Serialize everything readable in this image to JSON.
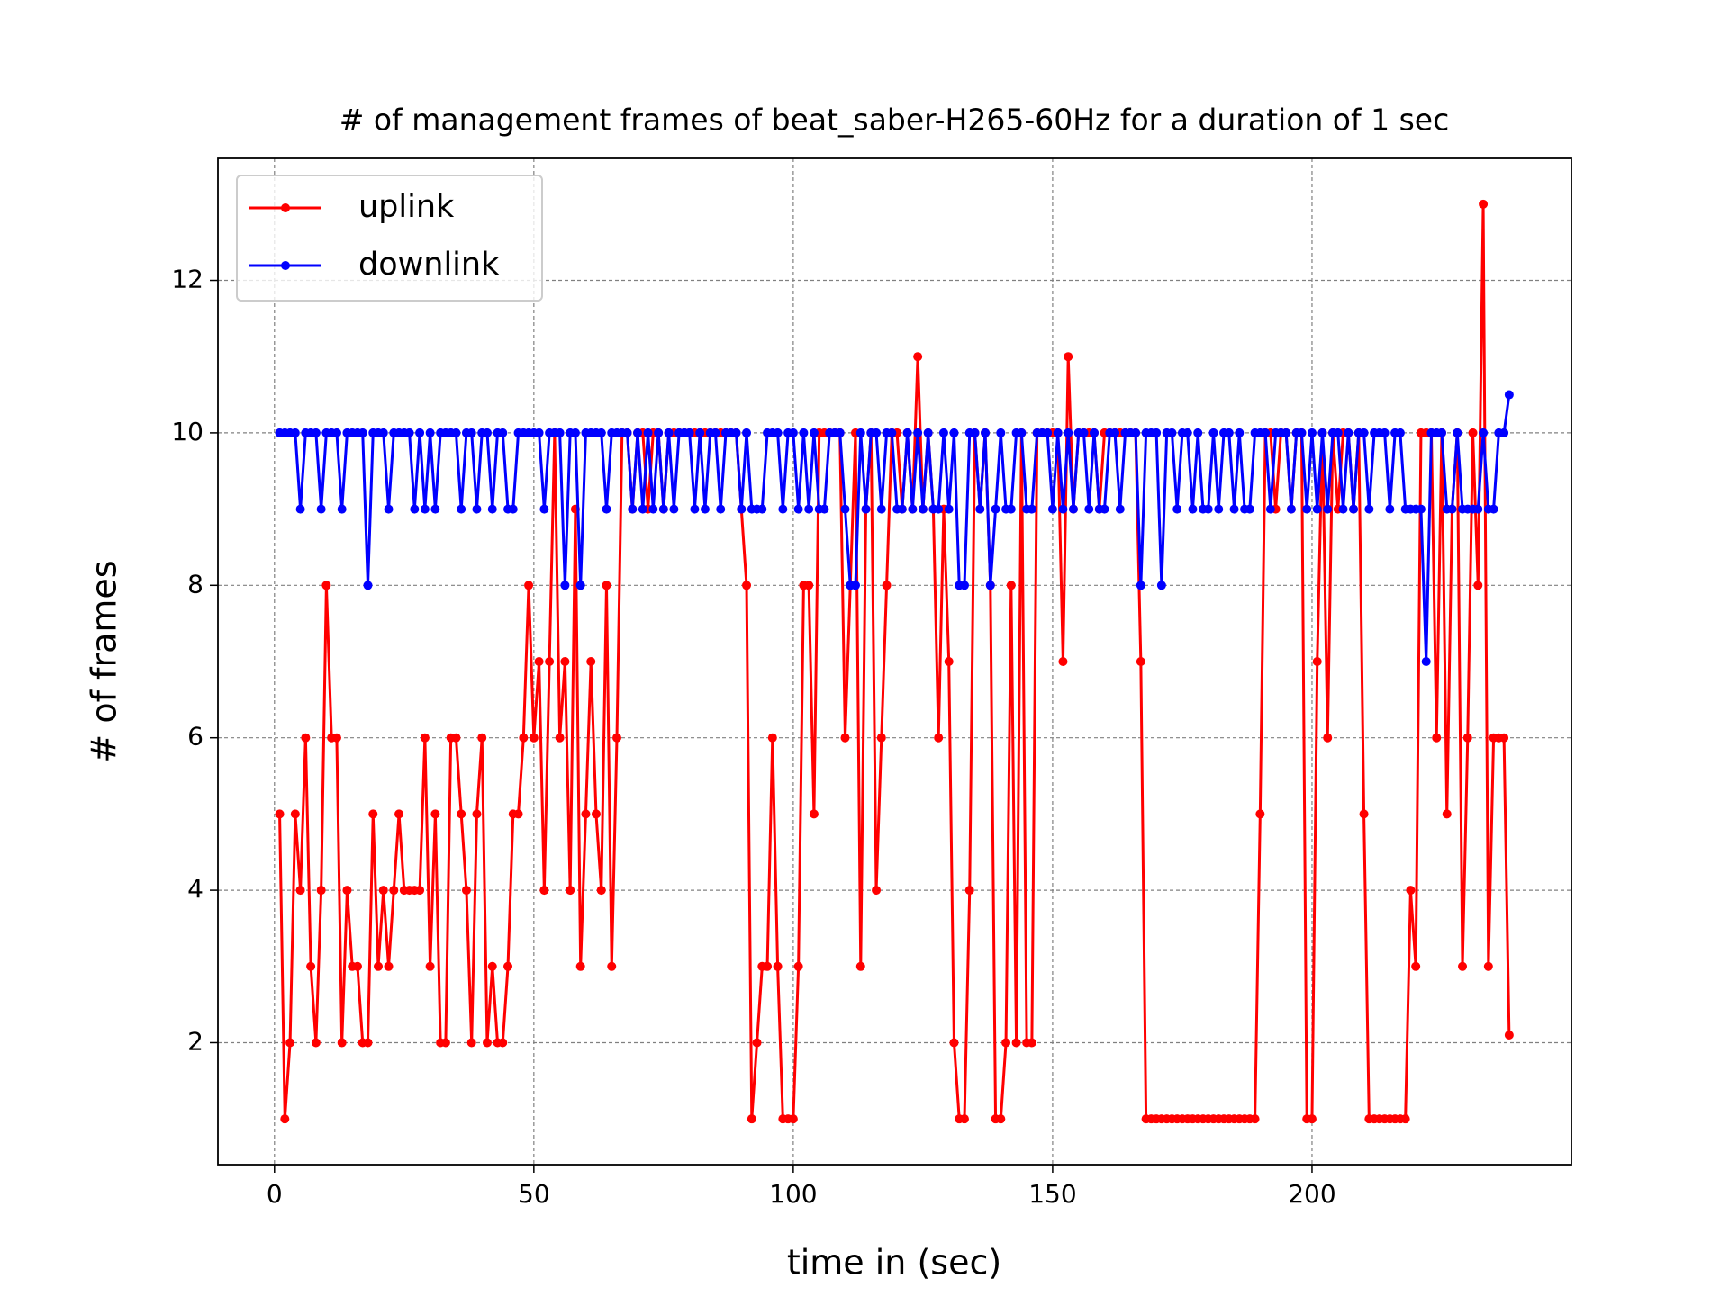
{
  "chart_data": {
    "type": "line",
    "title": "# of management frames of beat_saber-H265-60Hz for a duration of 1 sec",
    "xlabel": "time in (sec)",
    "ylabel": "# of frames",
    "x": [
      1,
      2,
      3,
      4,
      5,
      6,
      7,
      8,
      9,
      10,
      11,
      12,
      13,
      14,
      15,
      16,
      17,
      18,
      19,
      20,
      21,
      22,
      23,
      24,
      25,
      26,
      27,
      28,
      29,
      30,
      31,
      32,
      33,
      34,
      35,
      36,
      37,
      38,
      39,
      40,
      41,
      42,
      43,
      44,
      45,
      46,
      47,
      48,
      49,
      50,
      51,
      52,
      53,
      54,
      55,
      56,
      57,
      58,
      59,
      60,
      61,
      62,
      63,
      64,
      65,
      66,
      67,
      68,
      69,
      70,
      71,
      72,
      73,
      74,
      75,
      76,
      77,
      78,
      79,
      80,
      81,
      82,
      83,
      84,
      85,
      86,
      87,
      88,
      89,
      90,
      91,
      92,
      93,
      94,
      95,
      96,
      97,
      98,
      99,
      100,
      101,
      102,
      103,
      104,
      105,
      106,
      107,
      108,
      109,
      110,
      111,
      112,
      113,
      114,
      115,
      116,
      117,
      118,
      119,
      120,
      121,
      122,
      123,
      124,
      125,
      126,
      127,
      128,
      129,
      130,
      131,
      132,
      133,
      134,
      135,
      136,
      137,
      138,
      139,
      140,
      141,
      142,
      143,
      144,
      145,
      146,
      147,
      148,
      149,
      150,
      151,
      152,
      153,
      154,
      155,
      156,
      157,
      158,
      159,
      160,
      161,
      162,
      163,
      164,
      165,
      166,
      167,
      168,
      169,
      170,
      171,
      172,
      173,
      174,
      175,
      176,
      177,
      178,
      179,
      180,
      181,
      182,
      183,
      184,
      185,
      186,
      187,
      188,
      189,
      190,
      191,
      192,
      193,
      194,
      195,
      196,
      197,
      198,
      199,
      200,
      201,
      202,
      203,
      204,
      205,
      206,
      207,
      208,
      209,
      210,
      211,
      212,
      213,
      214,
      215,
      216,
      217,
      218,
      219,
      220,
      221,
      222,
      223,
      224,
      225,
      226,
      227,
      228,
      229,
      230,
      231,
      232,
      233,
      234,
      235,
      236,
      237,
      238
    ],
    "series": [
      {
        "name": "uplink",
        "color": "#ff0000",
        "values": [
          5,
          1,
          2,
          5,
          4,
          6,
          3,
          2,
          4,
          8,
          6,
          6,
          2,
          4,
          3,
          3,
          2,
          2,
          5,
          3,
          4,
          3,
          4,
          5,
          4,
          4,
          4,
          4,
          6,
          3,
          5,
          2,
          2,
          6,
          6,
          5,
          4,
          2,
          5,
          6,
          2,
          3,
          2,
          2,
          3,
          5,
          5,
          6,
          8,
          6,
          7,
          4,
          7,
          10,
          6,
          7,
          4,
          9,
          3,
          5,
          7,
          5,
          4,
          8,
          3,
          6,
          10,
          10,
          9,
          10,
          10,
          9,
          10,
          10,
          9,
          10,
          10,
          10,
          10,
          10,
          10,
          10,
          10,
          10,
          10,
          10,
          10,
          10,
          10,
          9,
          8,
          1,
          2,
          3,
          3,
          6,
          3,
          1,
          1,
          1,
          3,
          8,
          8,
          5,
          10,
          10,
          10,
          10,
          10,
          6,
          8,
          10,
          3,
          9,
          10,
          4,
          6,
          8,
          10,
          10,
          9,
          10,
          9,
          11,
          9,
          10,
          9,
          6,
          9,
          7,
          2,
          1,
          1,
          4,
          10,
          9,
          10,
          8,
          1,
          1,
          2,
          8,
          2,
          10,
          2,
          2,
          10,
          10,
          10,
          10,
          10,
          7,
          11,
          9,
          10,
          10,
          10,
          10,
          9,
          10,
          10,
          10,
          10,
          10,
          10,
          10,
          7,
          1,
          1,
          1,
          1,
          1,
          1,
          1,
          1,
          1,
          1,
          1,
          1,
          1,
          1,
          1,
          1,
          1,
          1,
          1,
          1,
          1,
          1,
          5,
          10,
          10,
          9,
          10,
          10,
          9,
          10,
          10,
          1,
          1,
          7,
          10,
          6,
          10,
          9,
          10,
          10,
          9,
          10,
          5,
          1,
          1,
          1,
          1,
          1,
          1,
          1,
          1,
          4,
          3,
          10,
          10,
          10,
          6,
          10,
          5,
          9,
          10,
          3,
          6,
          10,
          8,
          13,
          3,
          6,
          6,
          6,
          2.1
        ]
      },
      {
        "name": "downlink",
        "color": "#0000ff",
        "values": [
          10,
          10,
          10,
          10,
          9,
          10,
          10,
          10,
          9,
          10,
          10,
          10,
          9,
          10,
          10,
          10,
          10,
          8,
          10,
          10,
          10,
          9,
          10,
          10,
          10,
          10,
          9,
          10,
          9,
          10,
          9,
          10,
          10,
          10,
          10,
          9,
          10,
          10,
          9,
          10,
          10,
          9,
          10,
          10,
          9,
          9,
          10,
          10,
          10,
          10,
          10,
          9,
          10,
          10,
          10,
          8,
          10,
          10,
          8,
          10,
          10,
          10,
          10,
          9,
          10,
          10,
          10,
          10,
          9,
          10,
          9,
          10,
          9,
          10,
          9,
          10,
          9,
          10,
          10,
          10,
          9,
          10,
          9,
          10,
          10,
          9,
          10,
          10,
          10,
          9,
          10,
          9,
          9,
          9,
          10,
          10,
          10,
          9,
          10,
          10,
          9,
          10,
          9,
          10,
          9,
          9,
          10,
          10,
          10,
          9,
          8,
          8,
          10,
          9,
          10,
          10,
          9,
          10,
          10,
          9,
          9,
          10,
          9,
          10,
          9,
          10,
          9,
          9,
          10,
          9,
          10,
          8,
          8,
          10,
          10,
          9,
          10,
          8,
          9,
          10,
          9,
          9,
          10,
          10,
          9,
          9,
          10,
          10,
          10,
          9,
          10,
          9,
          10,
          9,
          10,
          10,
          9,
          10,
          9,
          9,
          10,
          10,
          9,
          10,
          10,
          10,
          8,
          10,
          10,
          10,
          8,
          10,
          10,
          9,
          10,
          10,
          9,
          10,
          9,
          9,
          10,
          9,
          10,
          10,
          9,
          10,
          9,
          9,
          10,
          10,
          10,
          9,
          10,
          10,
          10,
          9,
          10,
          10,
          9,
          10,
          9,
          10,
          9,
          10,
          10,
          9,
          10,
          9,
          10,
          10,
          9,
          10,
          10,
          10,
          9,
          10,
          10,
          9,
          9,
          9,
          9,
          7,
          10,
          10,
          10,
          9,
          9,
          10,
          9,
          9,
          9,
          9,
          10,
          9,
          9,
          10,
          10,
          10.5
        ]
      }
    ],
    "xlim": [
      -10.9,
      250
    ],
    "xticks": [
      0,
      50,
      100,
      150,
      200
    ],
    "ylim": [
      0.4,
      13.6
    ],
    "yticks": [
      2,
      4,
      6,
      8,
      10,
      12
    ],
    "grid": true,
    "legend": "upper-left"
  }
}
